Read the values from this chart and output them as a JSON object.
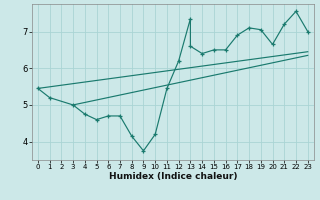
{
  "title": "",
  "xlabel": "Humidex (Indice chaleur)",
  "bg_color": "#cce8e8",
  "line_color": "#1a7a6e",
  "grid_color": "#aad4d4",
  "xlim": [
    -0.5,
    23.5
  ],
  "ylim": [
    3.5,
    7.75
  ],
  "xticks": [
    0,
    1,
    2,
    3,
    4,
    5,
    6,
    7,
    8,
    9,
    10,
    11,
    12,
    13,
    14,
    15,
    16,
    17,
    18,
    19,
    20,
    21,
    22,
    23
  ],
  "yticks": [
    4,
    5,
    6,
    7
  ],
  "series": [
    [
      0,
      5.45
    ],
    [
      1,
      5.2
    ],
    [
      3,
      5.0
    ],
    [
      4,
      4.75
    ],
    [
      5,
      4.6
    ],
    [
      6,
      4.7
    ],
    [
      7,
      4.7
    ],
    [
      8,
      4.15
    ],
    [
      9,
      3.75
    ],
    [
      10,
      4.2
    ],
    [
      11,
      5.45
    ],
    [
      12,
      6.2
    ],
    [
      13,
      7.35
    ],
    [
      13,
      6.6
    ],
    [
      14,
      6.4
    ],
    [
      15,
      6.5
    ],
    [
      16,
      6.5
    ],
    [
      17,
      6.9
    ],
    [
      18,
      7.1
    ],
    [
      19,
      7.05
    ],
    [
      20,
      6.65
    ],
    [
      21,
      7.2
    ],
    [
      22,
      7.55
    ],
    [
      23,
      7.0
    ]
  ],
  "line1_x": [
    0,
    23
  ],
  "line1_y": [
    5.45,
    6.45
  ],
  "line2_x": [
    3,
    23
  ],
  "line2_y": [
    5.0,
    6.35
  ]
}
